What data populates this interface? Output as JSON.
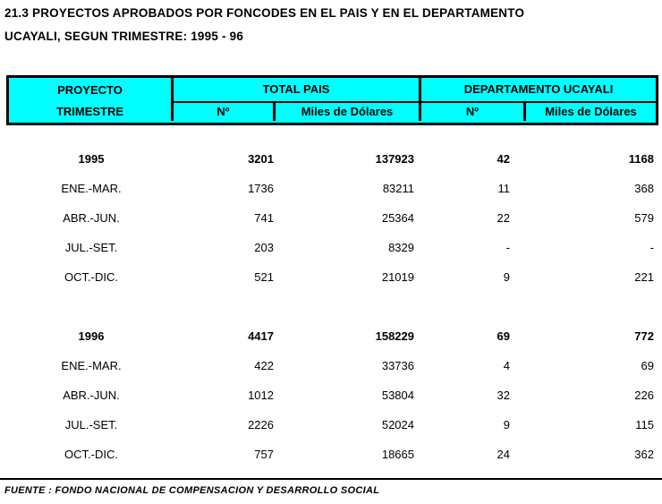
{
  "title": {
    "line1": "21.3 PROYECTOS APROBADOS POR FONCODES EN EL PAIS Y EN EL DEPARTAMENTO",
    "line2": "UCAYALI, SEGUN TRIMESTRE: 1995 - 96"
  },
  "colors": {
    "header_bg": "#00ffff",
    "border": "#000000",
    "text": "#000000"
  },
  "table": {
    "header": {
      "col1_line1": "PROYECTO",
      "col1_line2": "TRIMESTRE",
      "group_pais": "TOTAL PAIS",
      "group_ucayali": "DEPARTAMENTO UCAYALI",
      "pais_n": "Nº",
      "pais_miles": "Miles de Dólares",
      "ucayali_n": "Nº",
      "ucayali_miles": "Miles de Dólares"
    },
    "rows": [
      {
        "label": "1995",
        "pais_n": "3201",
        "pais_miles": "137923",
        "uca_n": "42",
        "uca_miles": "1168"
      },
      {
        "label": "ENE.-MAR.",
        "pais_n": "1736",
        "pais_miles": "83211",
        "uca_n": "11",
        "uca_miles": "368"
      },
      {
        "label": "ABR.-JUN.",
        "pais_n": "741",
        "pais_miles": "25364",
        "uca_n": "22",
        "uca_miles": "579"
      },
      {
        "label": "JUL.-SET.",
        "pais_n": "203",
        "pais_miles": "8329",
        "uca_n": "-",
        "uca_miles": "-"
      },
      {
        "label": "OCT.-DIC.",
        "pais_n": "521",
        "pais_miles": "21019",
        "uca_n": "9",
        "uca_miles": "221"
      },
      {
        "label": "1996",
        "pais_n": "4417",
        "pais_miles": "158229",
        "uca_n": "69",
        "uca_miles": "772"
      },
      {
        "label": "ENE.-MAR.",
        "pais_n": "422",
        "pais_miles": "33736",
        "uca_n": "4",
        "uca_miles": "69"
      },
      {
        "label": "ABR.-JUN.",
        "pais_n": "1012",
        "pais_miles": "53804",
        "uca_n": "32",
        "uca_miles": "226"
      },
      {
        "label": "JUL.-SET.",
        "pais_n": "2226",
        "pais_miles": "52024",
        "uca_n": "9",
        "uca_miles": "115"
      },
      {
        "label": "OCT.-DIC.",
        "pais_n": "757",
        "pais_miles": "18665",
        "uca_n": "24",
        "uca_miles": "362"
      }
    ]
  },
  "footer": {
    "source": "FUENTE : FONDO NACIONAL DE COMPENSACION Y DESARROLLO SOCIAL"
  }
}
